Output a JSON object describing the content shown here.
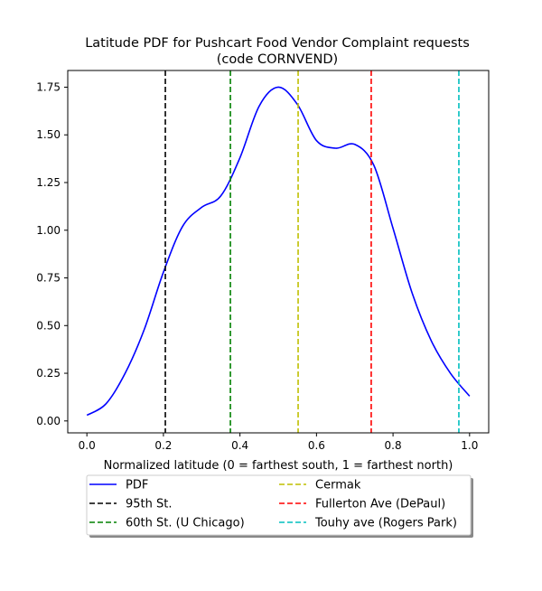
{
  "chart_data": {
    "type": "line",
    "title_line1": "Latitude PDF for Pushcart Food Vendor Complaint  requests",
    "title_line2": "(code CORNVEND)",
    "xlabel": "Normalized latitude (0 = farthest south, 1 = farthest north)",
    "ylabel": "",
    "xlim": [
      -0.05,
      1.05
    ],
    "ylim": [
      -0.0625,
      1.8375
    ],
    "grid": false,
    "legend_placement": "below",
    "x_ticks": [
      {
        "value": 0.0,
        "label": "0.0"
      },
      {
        "value": 0.2,
        "label": "0.2"
      },
      {
        "value": 0.4,
        "label": "0.4"
      },
      {
        "value": 0.6,
        "label": "0.6"
      },
      {
        "value": 0.8,
        "label": "0.8"
      },
      {
        "value": 1.0,
        "label": "1.0"
      }
    ],
    "y_ticks": [
      {
        "value": 0.0,
        "label": "0.00"
      },
      {
        "value": 0.25,
        "label": "0.25"
      },
      {
        "value": 0.5,
        "label": "0.50"
      },
      {
        "value": 0.75,
        "label": "0.75"
      },
      {
        "value": 1.0,
        "label": "1.00"
      },
      {
        "value": 1.25,
        "label": "1.25"
      },
      {
        "value": 1.5,
        "label": "1.50"
      },
      {
        "value": 1.75,
        "label": "1.75"
      }
    ],
    "series": [
      {
        "name": "PDF",
        "color": "#0000ff",
        "x": [
          0.0,
          0.05,
          0.1,
          0.15,
          0.2,
          0.25,
          0.3,
          0.35,
          0.4,
          0.45,
          0.5,
          0.55,
          0.6,
          0.65,
          0.7,
          0.75,
          0.8,
          0.85,
          0.9,
          0.95,
          1.0
        ],
        "y": [
          0.03,
          0.09,
          0.25,
          0.48,
          0.78,
          1.02,
          1.12,
          1.18,
          1.38,
          1.65,
          1.75,
          1.66,
          1.47,
          1.43,
          1.45,
          1.34,
          1.01,
          0.67,
          0.42,
          0.25,
          0.13
        ]
      }
    ],
    "reference_lines": [
      {
        "name": "95th St.",
        "x": 0.205,
        "color": "#000000"
      },
      {
        "name": "60th St. (U Chicago)",
        "x": 0.375,
        "color": "#008000"
      },
      {
        "name": "Cermak",
        "x": 0.552,
        "color": "#bfbf00"
      },
      {
        "name": "Fullerton Ave (DePaul)",
        "x": 0.743,
        "color": "#ff0000"
      },
      {
        "name": "Touhy ave (Rogers Park)",
        "x": 0.972,
        "color": "#00bfbf"
      }
    ]
  }
}
